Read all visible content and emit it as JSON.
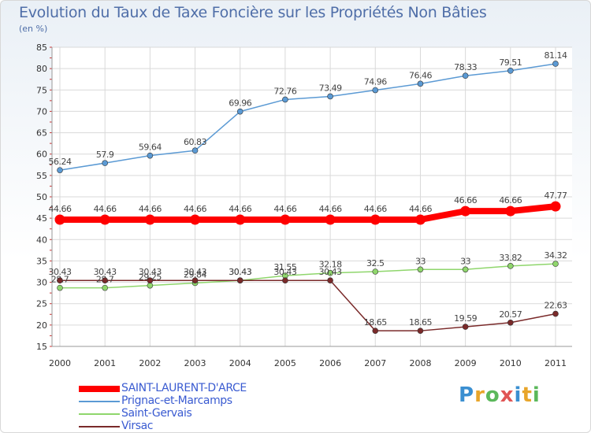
{
  "title": "Evolution du Taux de Taxe Foncière sur les Propriétés Non Bâties",
  "unit": "(en %)",
  "logo": {
    "letters": [
      "P",
      "r",
      "o",
      "x",
      "i",
      "t",
      "i"
    ],
    "colors": [
      "#3a8fd1",
      "#e8a52a",
      "#5bb85b",
      "#e05555",
      "#3a8fd1",
      "#e8a52a",
      "#5bb85b"
    ]
  },
  "chart_data": {
    "type": "line",
    "title": "Evolution du Taux de Taxe Foncière sur les Propriétés Non Bâties",
    "ylabel": "(en %)",
    "xlabel": "",
    "x": [
      "2000",
      "2001",
      "2002",
      "2003",
      "2004",
      "2005",
      "2006",
      "2007",
      "2008",
      "2009",
      "2010",
      "2011"
    ],
    "ylim": [
      15,
      85
    ],
    "yticks": [
      "15",
      "20",
      "25",
      "30",
      "35",
      "40",
      "45",
      "50",
      "55",
      "60",
      "65",
      "70",
      "75",
      "80",
      "85"
    ],
    "grid": true,
    "series": [
      {
        "name": "SAINT-LAURENT-D'ARCE",
        "color": "#ff0000",
        "width": 8,
        "values": [
          44.66,
          44.66,
          44.66,
          44.66,
          44.66,
          44.66,
          44.66,
          44.66,
          44.66,
          46.66,
          46.66,
          47.77
        ],
        "labels": [
          "44.66",
          "44.66",
          "44.66",
          "44.66",
          "44.66",
          "44.66",
          "44.66",
          "44.66",
          "44.66",
          "46.66",
          "46.66",
          "47.77"
        ]
      },
      {
        "name": "Prignac-et-Marcamps",
        "color": "#5b9ad4",
        "width": 1.5,
        "values": [
          56.24,
          57.9,
          59.64,
          60.83,
          69.96,
          72.76,
          73.49,
          74.96,
          76.46,
          78.33,
          79.51,
          81.14
        ],
        "labels": [
          "56.24",
          "57.9",
          "59.64",
          "60.83",
          "69.96",
          "72.76",
          "73.49",
          "74.96",
          "76.46",
          "78.33",
          "79.51",
          "81.14"
        ]
      },
      {
        "name": "Saint-Gervais",
        "color": "#8fd66c",
        "width": 1.5,
        "values": [
          28.7,
          28.7,
          29.25,
          29.84,
          30.43,
          31.55,
          32.18,
          32.5,
          33,
          33,
          33.82,
          34.32
        ],
        "labels": [
          "28.7",
          "28.7",
          "29.25",
          "29.84",
          "30.43",
          "31.55",
          "32.18",
          "32.5",
          "33",
          "33",
          "33.82",
          "34.32"
        ]
      },
      {
        "name": "Virsac",
        "color": "#7a2a2a",
        "width": 1.5,
        "values": [
          30.43,
          30.43,
          30.43,
          30.43,
          30.43,
          30.43,
          30.43,
          18.65,
          18.65,
          19.59,
          20.57,
          22.63
        ],
        "labels": [
          "30.43",
          "30.43",
          "30.43",
          "30.43",
          "30.43",
          "30.43",
          "30.43",
          "18.65",
          "18.65",
          "19.59",
          "20.57",
          "22.63"
        ]
      }
    ]
  }
}
